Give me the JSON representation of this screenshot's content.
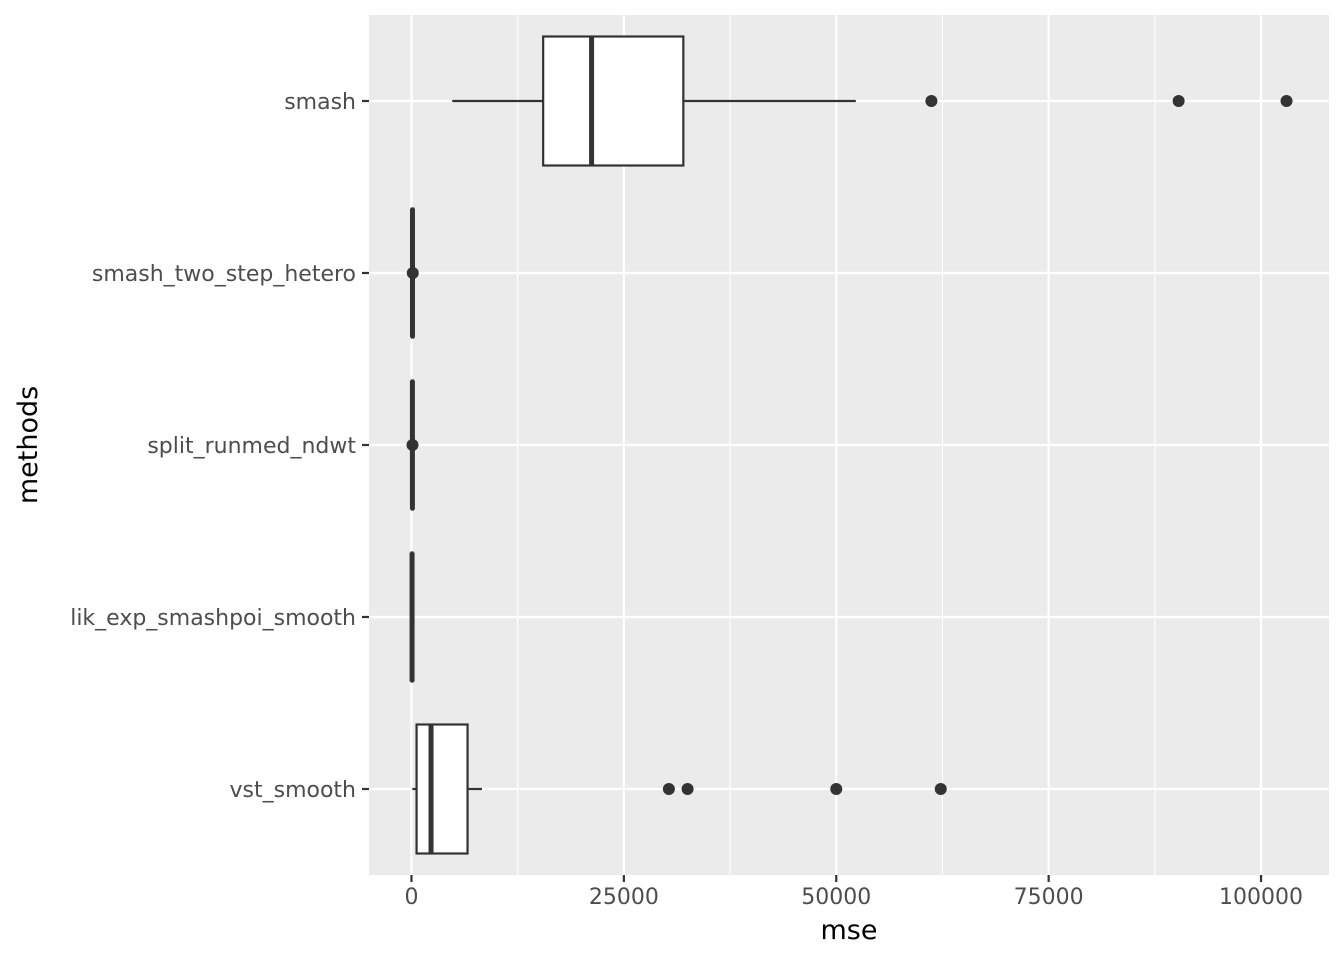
{
  "chart_data": {
    "type": "boxplot",
    "orientation": "horizontal",
    "xlabel": "mse",
    "ylabel": "methods",
    "xlim": [
      -5000,
      108000
    ],
    "x_ticks": [
      0,
      25000,
      50000,
      75000,
      100000
    ],
    "x_tick_labels": [
      "0",
      "25000",
      "50000",
      "75000",
      "100000"
    ],
    "grid": true,
    "legend": "none",
    "colors": {
      "panel": "#ebebeb",
      "grid": "#ffffff",
      "box_fill": "#ffffff",
      "box_line": "#333333",
      "outlier": "#333333",
      "tick_text": "#4d4d4d",
      "axis_title": "#000000"
    },
    "categories": [
      "smash",
      "smash_two_step_hetero",
      "split_runmed_ndwt",
      "lik_exp_smashpoi_smooth",
      "vst_smooth"
    ],
    "boxes": [
      {
        "category": "smash",
        "whisker_low": 4800,
        "q1": 15500,
        "median": 21200,
        "q3": 32000,
        "whisker_high": 52300,
        "outliers": [
          61200,
          90300,
          103000
        ]
      },
      {
        "category": "smash_two_step_hetero",
        "whisker_low": 0,
        "q1": 60,
        "median": 120,
        "q3": 200,
        "whisker_high": 350,
        "outliers": [
          150
        ]
      },
      {
        "category": "split_runmed_ndwt",
        "whisker_low": 0,
        "q1": 50,
        "median": 110,
        "q3": 180,
        "whisker_high": 300,
        "outliers": [
          120
        ]
      },
      {
        "category": "lik_exp_smashpoi_smooth",
        "whisker_low": 0,
        "q1": 30,
        "median": 70,
        "q3": 120,
        "whisker_high": 200,
        "outliers": []
      },
      {
        "category": "vst_smooth",
        "whisker_low": 100,
        "q1": 600,
        "median": 2300,
        "q3": 6600,
        "whisker_high": 8300,
        "outliers": [
          30300,
          32500,
          50000,
          62300
        ]
      }
    ]
  }
}
